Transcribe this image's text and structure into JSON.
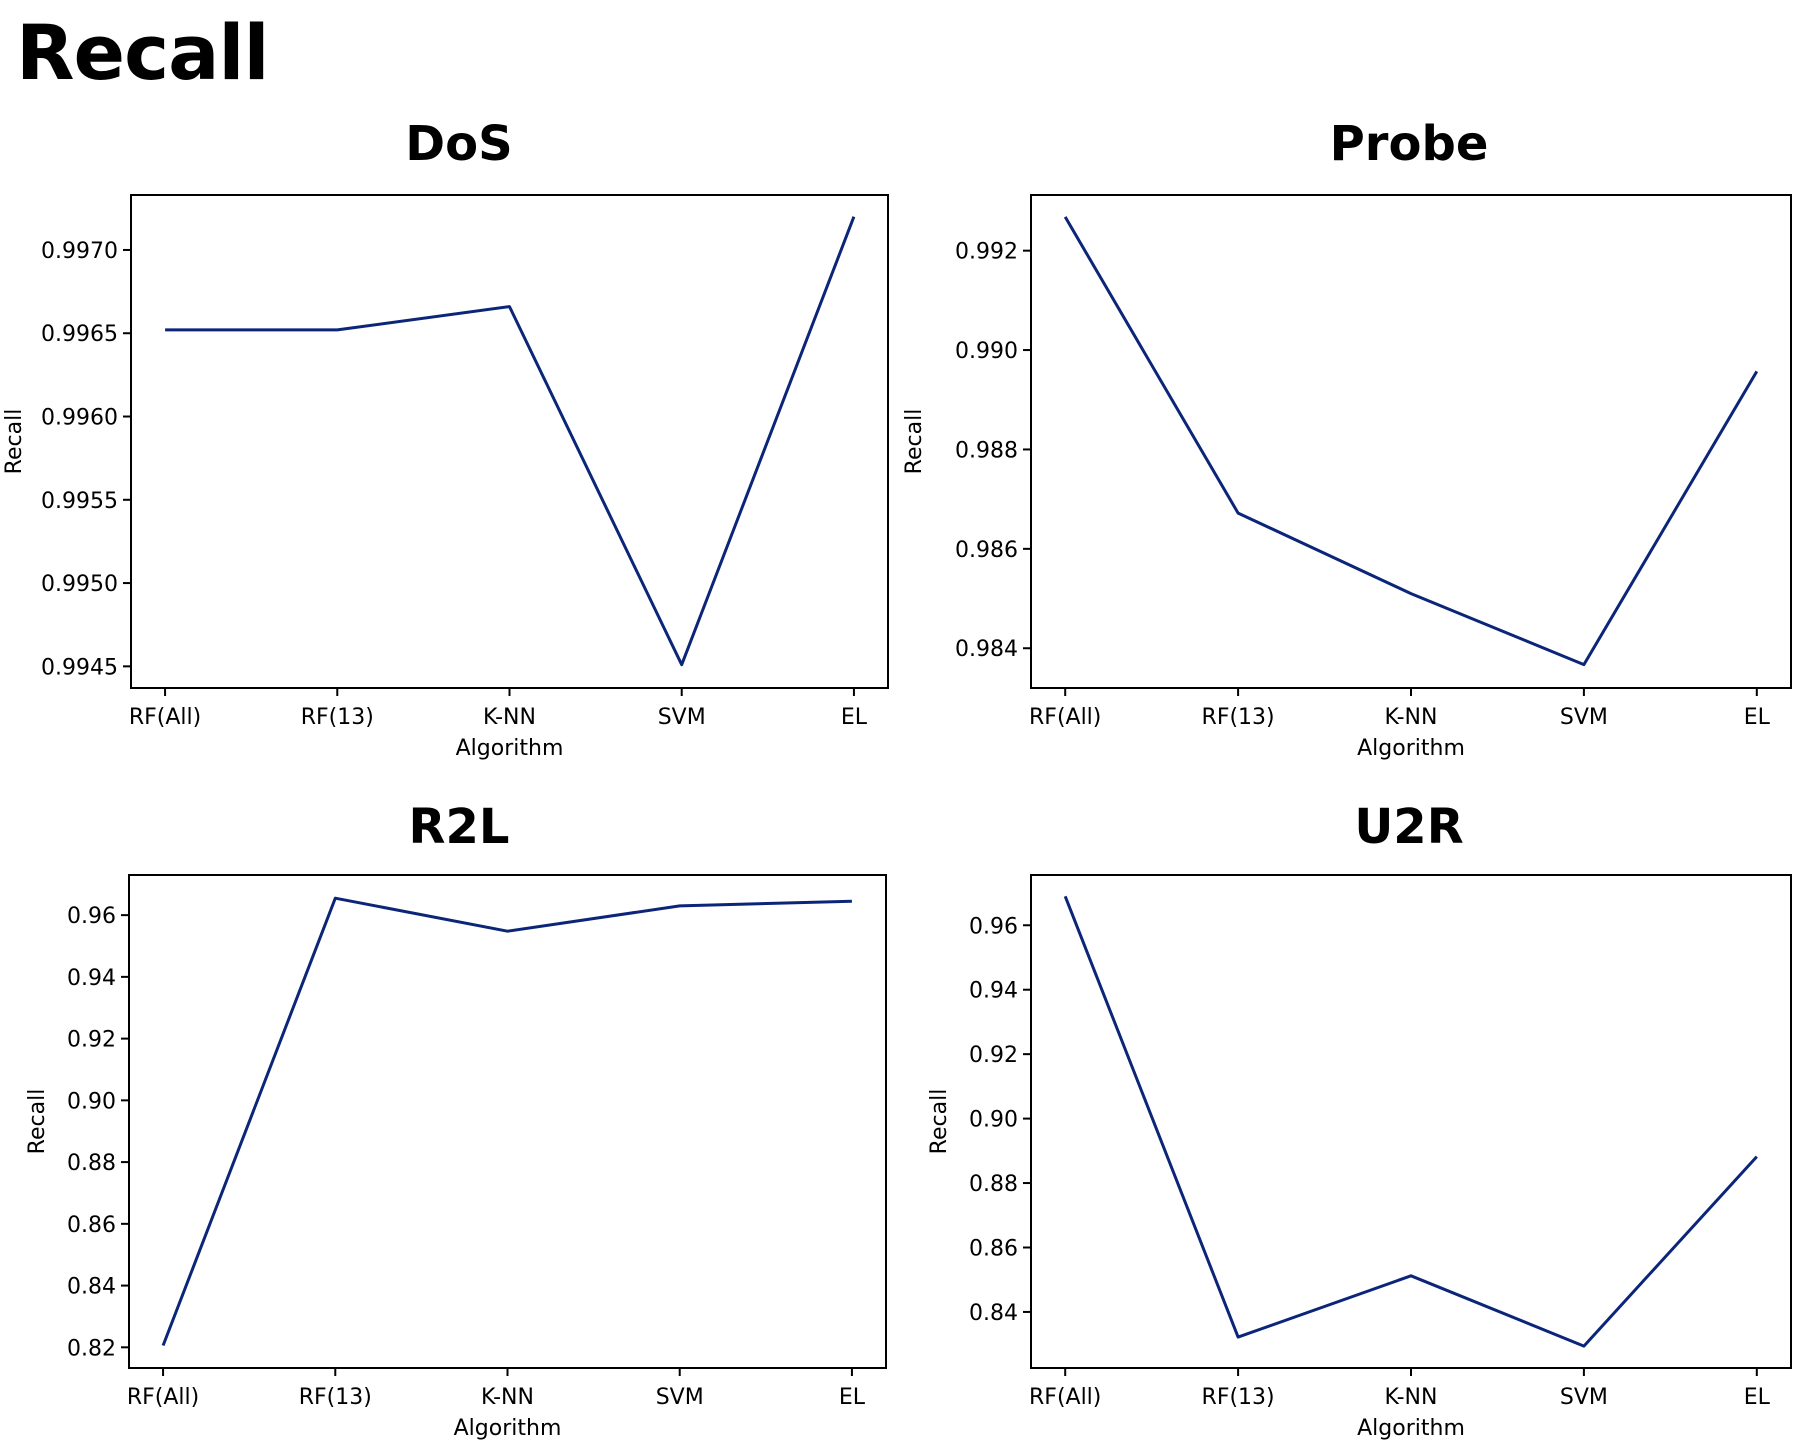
{
  "title": "Recall",
  "colors": {
    "line": "#0b2579"
  },
  "chart_data": [
    {
      "type": "line",
      "title": "DoS",
      "xlabel": "Algorithm",
      "ylabel": "Recall",
      "categories": [
        "RF(All)",
        "RF(13)",
        "K-NN",
        "SVM",
        "EL"
      ],
      "values": [
        0.99652,
        0.99652,
        0.99666,
        0.99451,
        0.9972
      ],
      "ylim": [
        0.99437,
        0.99733
      ],
      "yticks": [
        0.9945,
        0.995,
        0.9955,
        0.996,
        0.9965,
        0.997
      ],
      "ytick_labels": [
        "0.9945",
        "0.9950",
        "0.9955",
        "0.9960",
        "0.9965",
        "0.9970"
      ],
      "grid": false
    },
    {
      "type": "line",
      "title": "Probe",
      "xlabel": "Algorithm",
      "ylabel": "Recall",
      "categories": [
        "RF(All)",
        "RF(13)",
        "K-NN",
        "SVM",
        "EL"
      ],
      "values": [
        0.99268,
        0.98672,
        0.9851,
        0.98367,
        0.98957
      ],
      "ylim": [
        0.9832,
        0.99312
      ],
      "yticks": [
        0.984,
        0.986,
        0.988,
        0.99,
        0.992
      ],
      "ytick_labels": [
        "0.984",
        "0.986",
        "0.988",
        "0.990",
        "0.992"
      ],
      "grid": false
    },
    {
      "type": "line",
      "title": "R2L",
      "xlabel": "Algorithm",
      "ylabel": "Recall",
      "categories": [
        "RF(All)",
        "RF(13)",
        "K-NN",
        "SVM",
        "EL"
      ],
      "values": [
        0.8206,
        0.9655,
        0.9548,
        0.963,
        0.9645
      ],
      "ylim": [
        0.8133,
        0.973
      ],
      "yticks": [
        0.82,
        0.84,
        0.86,
        0.88,
        0.9,
        0.92,
        0.94,
        0.96
      ],
      "ytick_labels": [
        "0.82",
        "0.84",
        "0.86",
        "0.88",
        "0.90",
        "0.92",
        "0.94",
        "0.96"
      ],
      "grid": false
    },
    {
      "type": "line",
      "title": "U2R",
      "xlabel": "Algorithm",
      "ylabel": "Recall",
      "categories": [
        "RF(All)",
        "RF(13)",
        "K-NN",
        "SVM",
        "EL"
      ],
      "values": [
        0.969,
        0.8322,
        0.8512,
        0.8294,
        0.8882
      ],
      "ylim": [
        0.8226,
        0.9756
      ],
      "yticks": [
        0.84,
        0.86,
        0.88,
        0.9,
        0.92,
        0.94,
        0.96
      ],
      "ytick_labels": [
        "0.84",
        "0.86",
        "0.88",
        "0.90",
        "0.92",
        "0.94",
        "0.96"
      ],
      "grid": false
    }
  ]
}
